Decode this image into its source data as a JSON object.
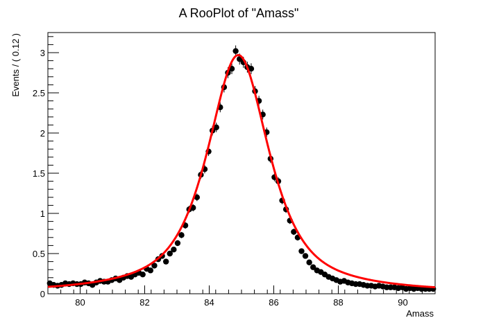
{
  "chart_data": {
    "type": "scatter",
    "title": "A RooPlot of \"Amass\"",
    "xlabel": "Amass",
    "ylabel": "Events / ( 0.12 )",
    "xlim": [
      79,
      91
    ],
    "ylim": [
      0,
      3.25
    ],
    "x_ticks": [
      {
        "value": 80,
        "label": "80"
      },
      {
        "value": 82,
        "label": "82"
      },
      {
        "value": 84,
        "label": "84"
      },
      {
        "value": 86,
        "label": "86"
      },
      {
        "value": 88,
        "label": "88"
      },
      {
        "value": 90,
        "label": "90"
      }
    ],
    "y_ticks": [
      {
        "value": 0,
        "label": "0"
      },
      {
        "value": 0.5,
        "label": "0.5"
      },
      {
        "value": 1,
        "label": "1"
      },
      {
        "value": 1.5,
        "label": "1.5"
      },
      {
        "value": 2,
        "label": "2"
      },
      {
        "value": 2.5,
        "label": "2.5"
      },
      {
        "value": 3,
        "label": "3"
      }
    ],
    "grid": false,
    "data_color": "#000000",
    "fit_color": "#ff0000",
    "data_x": [
      79.06,
      79.18,
      79.3,
      79.42,
      79.54,
      79.66,
      79.78,
      79.9,
      80.02,
      80.14,
      80.26,
      80.38,
      80.5,
      80.62,
      80.74,
      80.86,
      80.98,
      81.1,
      81.22,
      81.34,
      81.46,
      81.58,
      81.7,
      81.82,
      81.94,
      82.06,
      82.18,
      82.3,
      82.42,
      82.54,
      82.66,
      82.78,
      82.9,
      83.02,
      83.14,
      83.26,
      83.38,
      83.5,
      83.62,
      83.74,
      83.86,
      83.98,
      84.1,
      84.22,
      84.34,
      84.46,
      84.58,
      84.7,
      84.82,
      84.94,
      85.06,
      85.18,
      85.3,
      85.42,
      85.54,
      85.66,
      85.78,
      85.9,
      86.02,
      86.14,
      86.26,
      86.38,
      86.5,
      86.62,
      86.74,
      86.86,
      86.98,
      87.1,
      87.22,
      87.34,
      87.46,
      87.58,
      87.7,
      87.82,
      87.94,
      88.06,
      88.18,
      88.3,
      88.42,
      88.54,
      88.66,
      88.78,
      88.9,
      89.02,
      89.14,
      89.26,
      89.38,
      89.5,
      89.62,
      89.74,
      89.86,
      89.98,
      90.1,
      90.22,
      90.34,
      90.46,
      90.58,
      90.7,
      90.82,
      90.94
    ],
    "data_y": [
      0.13,
      0.11,
      0.1,
      0.11,
      0.13,
      0.12,
      0.13,
      0.12,
      0.12,
      0.14,
      0.13,
      0.11,
      0.14,
      0.16,
      0.15,
      0.15,
      0.17,
      0.19,
      0.17,
      0.2,
      0.22,
      0.21,
      0.24,
      0.26,
      0.24,
      0.31,
      0.29,
      0.35,
      0.43,
      0.47,
      0.4,
      0.5,
      0.55,
      0.63,
      0.73,
      0.85,
      1.05,
      1.07,
      1.2,
      1.48,
      1.55,
      1.77,
      2.03,
      2.07,
      2.32,
      2.57,
      2.75,
      2.8,
      3.02,
      2.92,
      2.88,
      2.82,
      2.8,
      2.52,
      2.4,
      2.23,
      2.01,
      1.68,
      1.45,
      1.4,
      1.16,
      1.05,
      0.91,
      0.77,
      0.7,
      0.53,
      0.47,
      0.39,
      0.33,
      0.29,
      0.27,
      0.24,
      0.21,
      0.19,
      0.17,
      0.15,
      0.16,
      0.14,
      0.13,
      0.12,
      0.12,
      0.11,
      0.1,
      0.1,
      0.09,
      0.1,
      0.09,
      0.08,
      0.08,
      0.08,
      0.07,
      0.08,
      0.06,
      0.07,
      0.06,
      0.07,
      0.06,
      0.06,
      0.06,
      0.06
    ],
    "fit_model": {
      "type": "voigt",
      "mean": 84.9,
      "sigma": 0.5,
      "gamma": 0.84,
      "peak": 2.97
    }
  }
}
